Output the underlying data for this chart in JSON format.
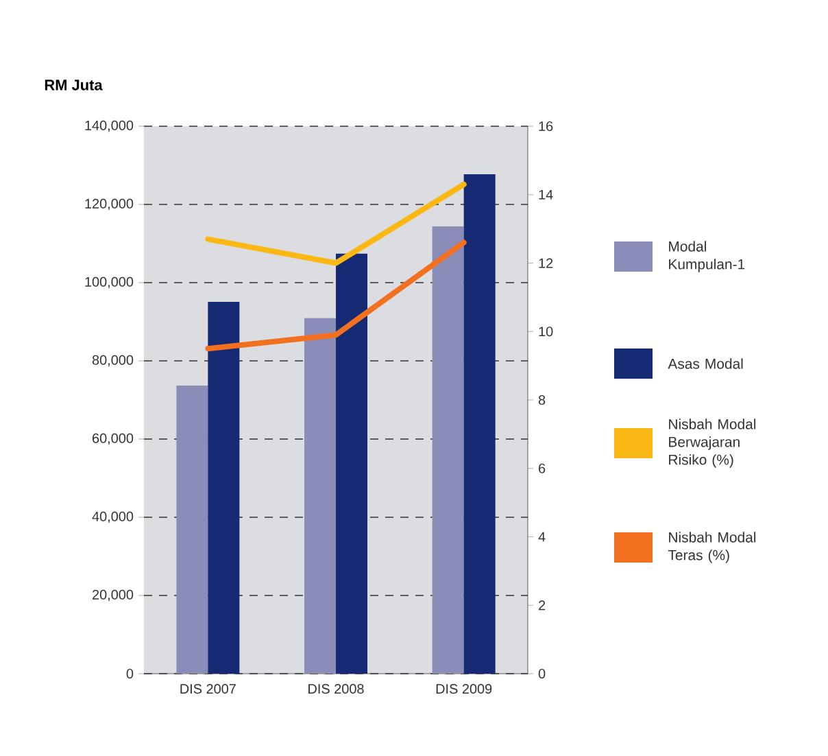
{
  "chart_data": {
    "type": "bar",
    "ylabel": "RM Juta",
    "categories": [
      "DIS 2007",
      "DIS 2008",
      "DIS 2009"
    ],
    "series": [
      {
        "name": "Modal Kumpulan-1",
        "color": "#8a8db8",
        "values": [
          73700,
          90900,
          114400
        ]
      },
      {
        "name": "Asas Modal",
        "color": "#162a73",
        "values": [
          95100,
          107400,
          127700
        ]
      },
      {
        "name": "Nisbah Modal Berwajaran Risiko (%)",
        "color": "#fbb714",
        "type": "line",
        "axis": "y2",
        "values": [
          12.7,
          12.0,
          14.3
        ]
      },
      {
        "name": "Nisbah Modal Teras (%)",
        "color": "#f37021",
        "type": "line",
        "axis": "y2",
        "values": [
          9.5,
          9.9,
          12.6
        ]
      }
    ],
    "ylim": [
      0,
      140000
    ],
    "yticks": [
      {
        "value": 0,
        "label": "0"
      },
      {
        "value": 20000,
        "label": "20,000"
      },
      {
        "value": 40000,
        "label": "40,000"
      },
      {
        "value": 60000,
        "label": "60,000"
      },
      {
        "value": 80000,
        "label": "80,000"
      },
      {
        "value": 100000,
        "label": "100,000"
      },
      {
        "value": 120000,
        "label": "120,000"
      },
      {
        "value": 140000,
        "label": "140,000"
      }
    ],
    "y2lim": [
      0,
      16
    ],
    "y2ticks": [
      0,
      2,
      4,
      6,
      8,
      10,
      12,
      14,
      16
    ],
    "grid": "y",
    "legend": "right"
  }
}
